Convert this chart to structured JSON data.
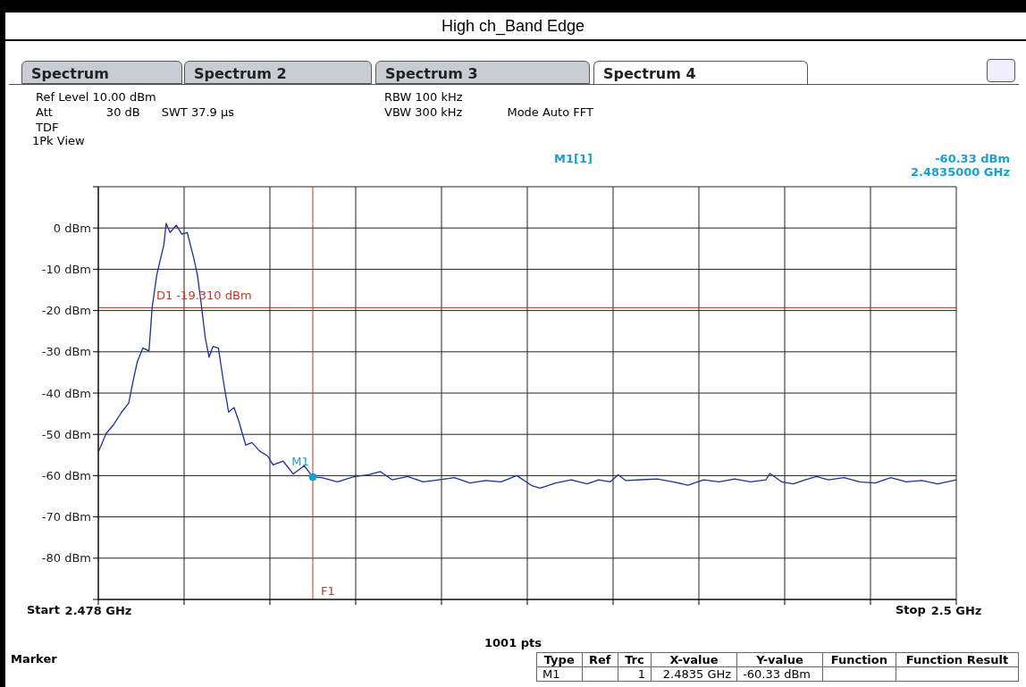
{
  "chart_data": {
    "type": "line",
    "title": "High ch_Band Edge",
    "annotations": [
      "Spectrum",
      "Spectrum 2",
      "Spectrum 3",
      "Spectrum 4",
      "Ref Level 10.00 dBm",
      "Att",
      "30 dB",
      "SWT 37.9 µs",
      "RBW 100 kHz",
      "VBW 300 kHz",
      "Mode Auto FFT",
      "TDF",
      "1Pk View",
      "M1[1]",
      "-60.33 dBm",
      "2.4835000 GHz",
      {
        "text": "M1",
        "x": 2.4835,
        "y": -60.33
      },
      "1001 pts",
      "Marker",
      "Type",
      "Ref",
      "Trc",
      "X-value",
      "Y-value",
      "Function",
      "Function Result",
      "M1",
      "1",
      "2.4835 GHz",
      "-60.33 dBm",
      "Start",
      "Stop"
    ],
    "series": [
      {
        "color": "#1f2f9a",
        "x": [
          2.478,
          2.4782,
          2.47838,
          2.4786,
          2.47878,
          2.4789,
          2.479,
          2.47914,
          2.4793,
          2.47938,
          2.4795,
          2.47968,
          2.47974,
          2.47984,
          2.48,
          2.48014,
          2.48028,
          2.48044,
          2.48054,
          2.48064,
          2.48074,
          2.48084,
          2.48094,
          2.48108,
          2.4812,
          2.48134,
          2.48148,
          2.4816,
          2.48178,
          2.48194,
          2.48214,
          2.48234,
          2.48248,
          2.48274,
          2.483,
          2.48328,
          2.4835,
          2.48373,
          2.48413,
          2.48453,
          2.48493,
          2.48523,
          2.48553,
          2.48593,
          2.48633,
          2.48673,
          2.48713,
          2.48753,
          2.48793,
          2.48833,
          2.48873,
          2.48913,
          2.48933,
          2.48973,
          2.49013,
          2.49053,
          2.49083,
          2.49113,
          2.49133,
          2.49153,
          2.49193,
          2.49233,
          2.49273,
          2.49312,
          2.49352,
          2.49392,
          2.49432,
          2.49472,
          2.49512,
          2.49522,
          2.49552,
          2.49582,
          2.49612,
          2.49642,
          2.49672,
          2.49712,
          2.49752,
          2.49792,
          2.49832,
          2.49872,
          2.49912,
          2.49952,
          2.5
        ],
        "values": [
          -54.3,
          -49.8,
          -47.8,
          -44.6,
          -42.4,
          -36.7,
          -32.4,
          -29.1,
          -29.8,
          -19.3,
          -11.3,
          -4.1,
          1.1,
          -1.1,
          0.7,
          -1.5,
          -1.1,
          -7,
          -11.3,
          -18.5,
          -26.5,
          -31.3,
          -28.7,
          -29.1,
          -36.7,
          -44.6,
          -43.5,
          -46.7,
          -52.6,
          -52,
          -54.1,
          -55.2,
          -57.4,
          -56.5,
          -59.6,
          -57.6,
          -60.33,
          -60.5,
          -61.5,
          -60.3,
          -59.8,
          -59,
          -61,
          -60.2,
          -61.5,
          -61,
          -60.5,
          -61.8,
          -61.2,
          -61.5,
          -60,
          -62.5,
          -63,
          -61.8,
          -61,
          -62,
          -61,
          -61.5,
          -59.8,
          -61.2,
          -61,
          -60.8,
          -61.5,
          -62.3,
          -61,
          -61.5,
          -60.8,
          -61.5,
          -61,
          -59.5,
          -61.5,
          -62,
          -61,
          -60.2,
          -61,
          -60.5,
          -61.5,
          -61.8,
          -60.5,
          -61.5,
          -61.2,
          -62,
          -61
        ]
      }
    ],
    "xlim": [
      2.478,
      2.5
    ],
    "xticks": [
      {
        "value": 2.478,
        "label": "2.478 GHz"
      },
      {
        "value": 2.4802,
        "label": null
      },
      {
        "value": 2.4824,
        "label": null
      },
      {
        "value": 2.4846,
        "label": null
      },
      {
        "value": 2.4868,
        "label": null
      },
      {
        "value": 2.489,
        "label": null
      },
      {
        "value": 2.4912,
        "label": null
      },
      {
        "value": 2.4934,
        "label": null
      },
      {
        "value": 2.4956,
        "label": null
      },
      {
        "value": 2.4978,
        "label": null
      },
      {
        "value": 2.5,
        "label": "2.5 GHz"
      }
    ],
    "ylim": [
      -90,
      10
    ],
    "yticks": [
      {
        "value": 10,
        "label": null
      },
      {
        "value": 0,
        "label": "0 dBm"
      },
      {
        "value": -10,
        "label": "-10 dBm"
      },
      {
        "value": -20,
        "label": "-20 dBm"
      },
      {
        "value": -30,
        "label": "-30 dBm"
      },
      {
        "value": -40,
        "label": "-40 dBm"
      },
      {
        "value": -50,
        "label": "-50 dBm"
      },
      {
        "value": -60,
        "label": "-60 dBm"
      },
      {
        "value": -70,
        "label": "-70 dBm"
      },
      {
        "value": -80,
        "label": "-80 dBm"
      },
      {
        "value": -90,
        "label": null
      }
    ],
    "ref_lines": [
      {
        "axis": "y",
        "value": -19.31,
        "label": "D1 -19.310 dBm",
        "color": "#c0392b"
      },
      {
        "axis": "x",
        "value": 2.4835,
        "label": "F1",
        "color": "#c0392b"
      }
    ],
    "grid": true,
    "legend": false,
    "marker": "none",
    "line_style": "solid"
  }
}
